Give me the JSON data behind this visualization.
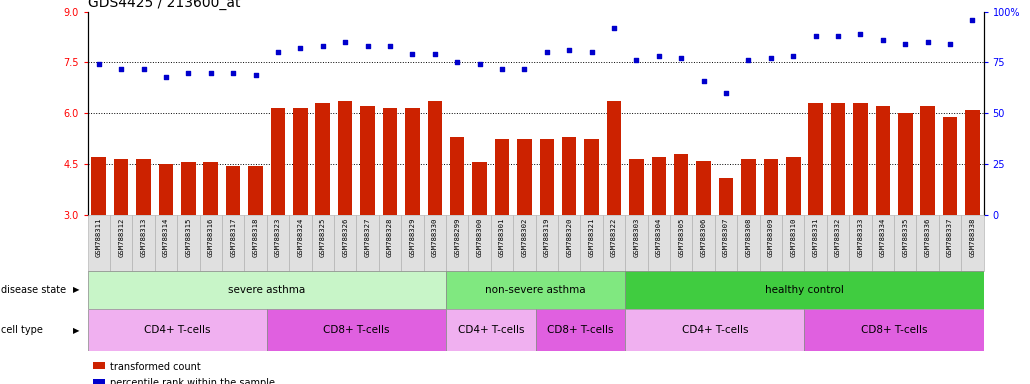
{
  "title": "GDS4425 / 213600_at",
  "samples": [
    "GSM788311",
    "GSM788312",
    "GSM788313",
    "GSM788314",
    "GSM788315",
    "GSM788316",
    "GSM788317",
    "GSM788318",
    "GSM788323",
    "GSM788324",
    "GSM788325",
    "GSM788326",
    "GSM788327",
    "GSM788328",
    "GSM788329",
    "GSM788330",
    "GSM788299",
    "GSM788300",
    "GSM788301",
    "GSM788302",
    "GSM788319",
    "GSM788320",
    "GSM788321",
    "GSM788322",
    "GSM788303",
    "GSM788304",
    "GSM788305",
    "GSM788306",
    "GSM788307",
    "GSM788308",
    "GSM788309",
    "GSM788310",
    "GSM788331",
    "GSM788332",
    "GSM788333",
    "GSM788334",
    "GSM788335",
    "GSM788336",
    "GSM788337",
    "GSM788338"
  ],
  "bar_values": [
    4.7,
    4.65,
    4.65,
    4.5,
    4.55,
    4.55,
    4.45,
    4.45,
    6.15,
    6.15,
    6.3,
    6.35,
    6.2,
    6.15,
    6.15,
    6.35,
    5.3,
    4.55,
    5.25,
    5.25,
    5.25,
    5.3,
    5.25,
    6.35,
    4.65,
    4.7,
    4.8,
    4.6,
    4.1,
    4.65,
    4.65,
    4.7,
    6.3,
    6.3,
    6.3,
    6.2,
    6.0,
    6.2,
    5.9,
    6.1
  ],
  "dot_values": [
    74,
    72,
    72,
    68,
    70,
    70,
    70,
    69,
    80,
    82,
    83,
    85,
    83,
    83,
    79,
    79,
    75,
    74,
    72,
    72,
    80,
    81,
    80,
    92,
    76,
    78,
    77,
    66,
    60,
    76,
    77,
    78,
    88,
    88,
    89,
    86,
    84,
    85,
    84,
    96
  ],
  "disease_state_groups": [
    {
      "label": "severe asthma",
      "start": 0,
      "end": 16,
      "color": "#c8f5c8"
    },
    {
      "label": "non-severe asthma",
      "start": 16,
      "end": 24,
      "color": "#80e880"
    },
    {
      "label": "healthy control",
      "start": 24,
      "end": 40,
      "color": "#40cc40"
    }
  ],
  "cell_type_groups": [
    {
      "label": "CD4+ T-cells",
      "start": 0,
      "end": 8,
      "color": "#f0b0f0"
    },
    {
      "label": "CD8+ T-cells",
      "start": 8,
      "end": 16,
      "color": "#e060e0"
    },
    {
      "label": "CD4+ T-cells",
      "start": 16,
      "end": 20,
      "color": "#f0b0f0"
    },
    {
      "label": "CD8+ T-cells",
      "start": 20,
      "end": 24,
      "color": "#e060e0"
    },
    {
      "label": "CD4+ T-cells",
      "start": 24,
      "end": 32,
      "color": "#f0b0f0"
    },
    {
      "label": "CD8+ T-cells",
      "start": 32,
      "end": 40,
      "color": "#e060e0"
    }
  ],
  "bar_color": "#cc2200",
  "dot_color": "#0000cc",
  "ylim_left": [
    3,
    9
  ],
  "ylim_right": [
    0,
    100
  ],
  "yticks_left": [
    3,
    4.5,
    6,
    7.5,
    9
  ],
  "yticks_right": [
    0,
    25,
    50,
    75,
    100
  ],
  "hlines": [
    4.5,
    6.0,
    7.5
  ],
  "bar_width": 0.65,
  "background_color": "#ffffff",
  "tick_label_fontsize": 5.2,
  "title_fontsize": 10,
  "label_box_color": "#e8e8e8",
  "n_samples": 40
}
